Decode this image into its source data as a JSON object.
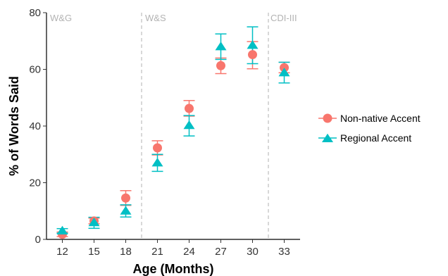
{
  "chart_data": {
    "type": "scatter",
    "xlabel": "Age (Months)",
    "ylabel": "% of Words Said",
    "categories": [
      "12",
      "15",
      "18",
      "21",
      "24",
      "27",
      "30",
      "33"
    ],
    "x": [
      12,
      15,
      18,
      21,
      24,
      27,
      30,
      33
    ],
    "ylim": [
      0,
      80
    ],
    "yticks": [
      0,
      20,
      40,
      60,
      80
    ],
    "grid": false,
    "legend_position": "right",
    "phase_labels": [
      "W&G",
      "W&S",
      "CDI-III"
    ],
    "phase_boundaries": [
      19.5,
      31.5
    ],
    "series": [
      {
        "name": "Non-native Accent",
        "marker": "circle",
        "color": "#F8766D",
        "values": [
          1.8,
          6.5,
          14.6,
          32.3,
          46.2,
          61.3,
          65.2,
          60.6
        ],
        "err_low": [
          1.0,
          5.5,
          12.0,
          29.8,
          43.5,
          58.5,
          60.2,
          58.8
        ],
        "err_high": [
          2.6,
          7.5,
          17.2,
          34.8,
          49.0,
          64.0,
          69.8,
          62.5
        ]
      },
      {
        "name": "Regional Accent",
        "marker": "triangle",
        "color": "#00BFC4",
        "values": [
          3.0,
          5.9,
          10.0,
          27.0,
          40.2,
          68.0,
          68.5,
          58.8
        ],
        "err_low": [
          2.2,
          3.9,
          7.9,
          24.0,
          36.5,
          63.5,
          62.0,
          55.2
        ],
        "err_high": [
          3.8,
          7.8,
          12.2,
          30.0,
          43.7,
          72.5,
          75.0,
          62.5
        ]
      }
    ]
  }
}
